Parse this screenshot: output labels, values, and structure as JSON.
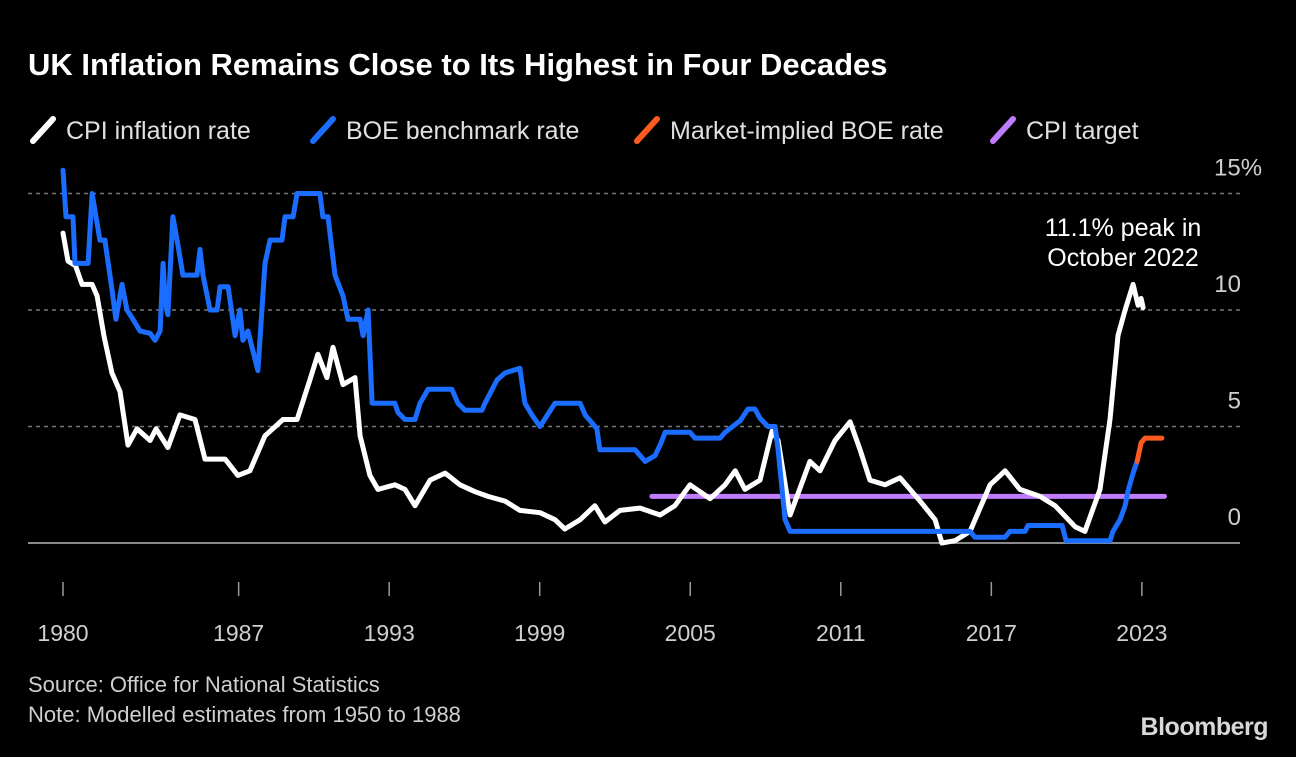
{
  "chart_data": {
    "type": "line",
    "title": "UK Inflation Remains Close to Its Highest in Four Decades",
    "legend_placement": "top-left",
    "grid": true,
    "xlim": [
      1980,
      2025
    ],
    "ylim": [
      0,
      15
    ],
    "x_ticks": [
      "1980",
      "1987",
      "1993",
      "1999",
      "2005",
      "2011",
      "2017",
      "2023"
    ],
    "y_ticks": [
      {
        "value": 0,
        "label": "0"
      },
      {
        "value": 5,
        "label": "5"
      },
      {
        "value": 10,
        "label": "10"
      },
      {
        "value": 15,
        "label": "15%"
      }
    ],
    "series": [
      {
        "name": "CPI inflation rate",
        "color": "#ffffff",
        "points": [
          [
            1980.0,
            13.3
          ],
          [
            1980.2,
            12.1
          ],
          [
            1980.5,
            11.9
          ],
          [
            1980.76,
            11.1
          ],
          [
            1981.16,
            11.1
          ],
          [
            1981.36,
            10.6
          ],
          [
            1981.63,
            8.9
          ],
          [
            1981.95,
            7.3
          ],
          [
            1982.27,
            6.5
          ],
          [
            1982.59,
            4.2
          ],
          [
            1982.95,
            4.9
          ],
          [
            1983.47,
            4.4
          ],
          [
            1983.71,
            4.9
          ],
          [
            1984.18,
            4.1
          ],
          [
            1984.66,
            5.5
          ],
          [
            1985.26,
            5.3
          ],
          [
            1985.66,
            3.6
          ],
          [
            1986.46,
            3.6
          ],
          [
            1986.97,
            2.9
          ],
          [
            1987.45,
            3.1
          ],
          [
            1988.05,
            4.6
          ],
          [
            1988.77,
            5.3
          ],
          [
            1989.33,
            5.3
          ],
          [
            1989.84,
            7.0
          ],
          [
            1990.16,
            8.1
          ],
          [
            1990.52,
            7.1
          ],
          [
            1990.76,
            8.4
          ],
          [
            1991.16,
            6.8
          ],
          [
            1991.64,
            7.1
          ],
          [
            1991.84,
            4.6
          ],
          [
            1992.23,
            2.9
          ],
          [
            1992.55,
            2.3
          ],
          [
            1993.23,
            2.5
          ],
          [
            1993.63,
            2.3
          ],
          [
            1994.03,
            1.6
          ],
          [
            1994.63,
            2.7
          ],
          [
            1995.23,
            3.0
          ],
          [
            1995.82,
            2.5
          ],
          [
            1996.42,
            2.2
          ],
          [
            1996.94,
            2.0
          ],
          [
            1997.62,
            1.8
          ],
          [
            1998.21,
            1.4
          ],
          [
            1999.01,
            1.3
          ],
          [
            1999.61,
            1.0
          ],
          [
            2000.0,
            0.6
          ],
          [
            2000.61,
            1.0
          ],
          [
            2001.2,
            1.6
          ],
          [
            2001.6,
            0.9
          ],
          [
            2002.2,
            1.4
          ],
          [
            2003.0,
            1.5
          ],
          [
            2003.8,
            1.2
          ],
          [
            2004.39,
            1.6
          ],
          [
            2004.99,
            2.5
          ],
          [
            2005.79,
            1.9
          ],
          [
            2006.39,
            2.5
          ],
          [
            2006.79,
            3.1
          ],
          [
            2007.18,
            2.3
          ],
          [
            2007.78,
            2.7
          ],
          [
            2008.26,
            4.8
          ],
          [
            2008.5,
            4.4
          ],
          [
            2008.98,
            1.2
          ],
          [
            2009.77,
            3.5
          ],
          [
            2010.17,
            3.1
          ],
          [
            2010.77,
            4.4
          ],
          [
            2011.37,
            5.2
          ],
          [
            2011.77,
            4.0
          ],
          [
            2012.16,
            2.7
          ],
          [
            2012.76,
            2.5
          ],
          [
            2013.36,
            2.8
          ],
          [
            2014.16,
            1.8
          ],
          [
            2014.76,
            1.0
          ],
          [
            2015.03,
            0.0
          ],
          [
            2015.55,
            0.1
          ],
          [
            2016.15,
            0.5
          ],
          [
            2016.95,
            2.5
          ],
          [
            2017.55,
            3.1
          ],
          [
            2018.14,
            2.3
          ],
          [
            2018.94,
            2.0
          ],
          [
            2019.54,
            1.6
          ],
          [
            2020.34,
            0.7
          ],
          [
            2020.73,
            0.5
          ],
          [
            2021.33,
            2.3
          ],
          [
            2021.73,
            5.3
          ],
          [
            2022.05,
            8.9
          ],
          [
            2022.33,
            10.0
          ],
          [
            2022.65,
            11.1
          ],
          [
            2022.85,
            10.2
          ],
          [
            2022.97,
            10.5
          ],
          [
            2023.05,
            10.1
          ]
        ]
      },
      {
        "name": "BOE benchmark rate",
        "color": "#1a6dff",
        "points": [
          [
            1980.0,
            16.0
          ],
          [
            1980.12,
            14.0
          ],
          [
            1980.4,
            14.0
          ],
          [
            1980.48,
            12.0
          ],
          [
            1981.0,
            12.0
          ],
          [
            1981.16,
            15.0
          ],
          [
            1981.47,
            13.0
          ],
          [
            1981.67,
            13.0
          ],
          [
            1981.95,
            10.9
          ],
          [
            1982.11,
            9.6
          ],
          [
            1982.35,
            11.1
          ],
          [
            1982.55,
            10.0
          ],
          [
            1982.79,
            9.6
          ],
          [
            1983.07,
            9.1
          ],
          [
            1983.47,
            9.0
          ],
          [
            1983.67,
            8.7
          ],
          [
            1983.87,
            9.1
          ],
          [
            1983.99,
            12.0
          ],
          [
            1984.07,
            10.4
          ],
          [
            1984.18,
            9.8
          ],
          [
            1984.38,
            14.0
          ],
          [
            1984.58,
            12.8
          ],
          [
            1984.78,
            11.5
          ],
          [
            1985.34,
            11.5
          ],
          [
            1985.46,
            12.6
          ],
          [
            1985.58,
            11.5
          ],
          [
            1985.86,
            10.0
          ],
          [
            1986.14,
            10.0
          ],
          [
            1986.26,
            11.0
          ],
          [
            1986.58,
            11.0
          ],
          [
            1986.86,
            8.9
          ],
          [
            1987.05,
            10.0
          ],
          [
            1987.17,
            8.7
          ],
          [
            1987.37,
            9.1
          ],
          [
            1987.77,
            7.4
          ],
          [
            1988.05,
            12.0
          ],
          [
            1988.25,
            13.0
          ],
          [
            1988.73,
            13.0
          ],
          [
            1988.85,
            14.0
          ],
          [
            1989.17,
            14.0
          ],
          [
            1989.33,
            15.0
          ],
          [
            1990.24,
            15.0
          ],
          [
            1990.36,
            14.0
          ],
          [
            1990.56,
            14.0
          ],
          [
            1990.84,
            11.5
          ],
          [
            1991.16,
            10.6
          ],
          [
            1991.36,
            9.6
          ],
          [
            1991.84,
            9.6
          ],
          [
            1991.96,
            8.9
          ],
          [
            1992.16,
            10.0
          ],
          [
            1992.32,
            6.0
          ],
          [
            1993.23,
            6.0
          ],
          [
            1993.35,
            5.6
          ],
          [
            1993.63,
            5.3
          ],
          [
            1994.03,
            5.3
          ],
          [
            1994.23,
            6.0
          ],
          [
            1994.55,
            6.6
          ],
          [
            1995.5,
            6.6
          ],
          [
            1995.74,
            6.0
          ],
          [
            1996.02,
            5.7
          ],
          [
            1996.7,
            5.7
          ],
          [
            1996.82,
            6.0
          ],
          [
            1997.3,
            7.0
          ],
          [
            1997.62,
            7.3
          ],
          [
            1998.21,
            7.5
          ],
          [
            1998.41,
            6.0
          ],
          [
            1998.69,
            5.5
          ],
          [
            1999.01,
            5.0
          ],
          [
            1999.61,
            6.0
          ],
          [
            2000.61,
            6.0
          ],
          [
            2000.81,
            5.5
          ],
          [
            2001.28,
            4.9
          ],
          [
            2001.4,
            4.0
          ],
          [
            2002.8,
            4.0
          ],
          [
            2003.2,
            3.5
          ],
          [
            2003.6,
            3.75
          ],
          [
            2003.8,
            4.2
          ],
          [
            2004.0,
            4.75
          ],
          [
            2004.99,
            4.75
          ],
          [
            2005.19,
            4.5
          ],
          [
            2006.19,
            4.5
          ],
          [
            2006.39,
            4.75
          ],
          [
            2006.99,
            5.25
          ],
          [
            2007.3,
            5.75
          ],
          [
            2007.58,
            5.75
          ],
          [
            2007.78,
            5.35
          ],
          [
            2008.1,
            5.0
          ],
          [
            2008.38,
            5.0
          ],
          [
            2008.5,
            4.0
          ],
          [
            2008.78,
            1.0
          ],
          [
            2008.98,
            0.5
          ],
          [
            2016.15,
            0.5
          ],
          [
            2016.35,
            0.25
          ],
          [
            2017.55,
            0.25
          ],
          [
            2017.74,
            0.5
          ],
          [
            2018.34,
            0.5
          ],
          [
            2018.46,
            0.75
          ],
          [
            2019.82,
            0.75
          ],
          [
            2019.98,
            0.1
          ],
          [
            2021.73,
            0.1
          ],
          [
            2021.85,
            0.5
          ],
          [
            2022.13,
            1.0
          ],
          [
            2022.33,
            1.6
          ],
          [
            2022.45,
            2.25
          ],
          [
            2022.65,
            3.0
          ],
          [
            2022.81,
            3.5
          ]
        ]
      },
      {
        "name": "Market-implied BOE rate",
        "color": "#ff5a1f",
        "points": [
          [
            2022.81,
            3.5
          ],
          [
            2022.97,
            4.3
          ],
          [
            2023.13,
            4.5
          ],
          [
            2023.8,
            4.5
          ]
        ]
      },
      {
        "name": "CPI target",
        "color": "#c07cff",
        "points": [
          [
            2003.47,
            2.0
          ],
          [
            2023.9,
            2.0
          ]
        ]
      }
    ],
    "annotations": [
      {
        "text_lines": [
          "11.1% peak in",
          "October 2022"
        ],
        "x": 2022.8,
        "y": 11.1
      }
    ]
  },
  "footer": {
    "source": "Source: Office for National Statistics",
    "note": "Note: Modelled estimates from 1950 to 1988",
    "brand": "Bloomberg"
  }
}
